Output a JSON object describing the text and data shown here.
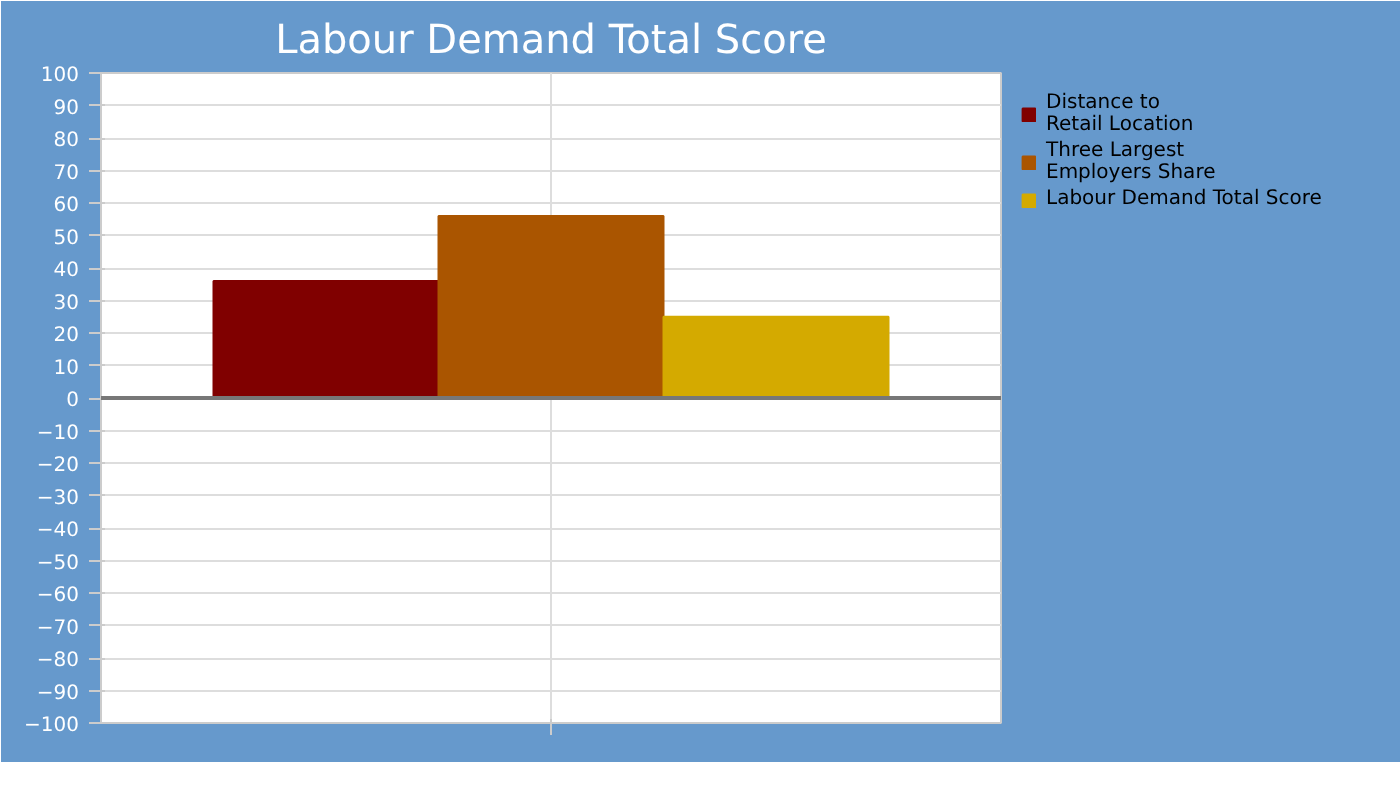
{
  "chart_data": {
    "type": "bar",
    "title": "Labour Demand Total Score",
    "categories": [
      null
    ],
    "series": [
      {
        "name": "Distance to\nRetail Location",
        "color": "#800000",
        "values": [
          36
        ]
      },
      {
        "name": "Three Largest\nEmployers Share",
        "color": "#aa5500",
        "values": [
          56
        ]
      },
      {
        "name": "Labour Demand Total Score",
        "color": "#d4aa00",
        "values": [
          25
        ]
      }
    ],
    "ylim": [
      -100,
      100
    ],
    "yticks": [
      -100,
      -90,
      -80,
      -70,
      -60,
      -50,
      -40,
      -30,
      -20,
      -10,
      0,
      10,
      20,
      30,
      40,
      50,
      60,
      70,
      80,
      90,
      100
    ],
    "grid": true,
    "legend": "right"
  }
}
